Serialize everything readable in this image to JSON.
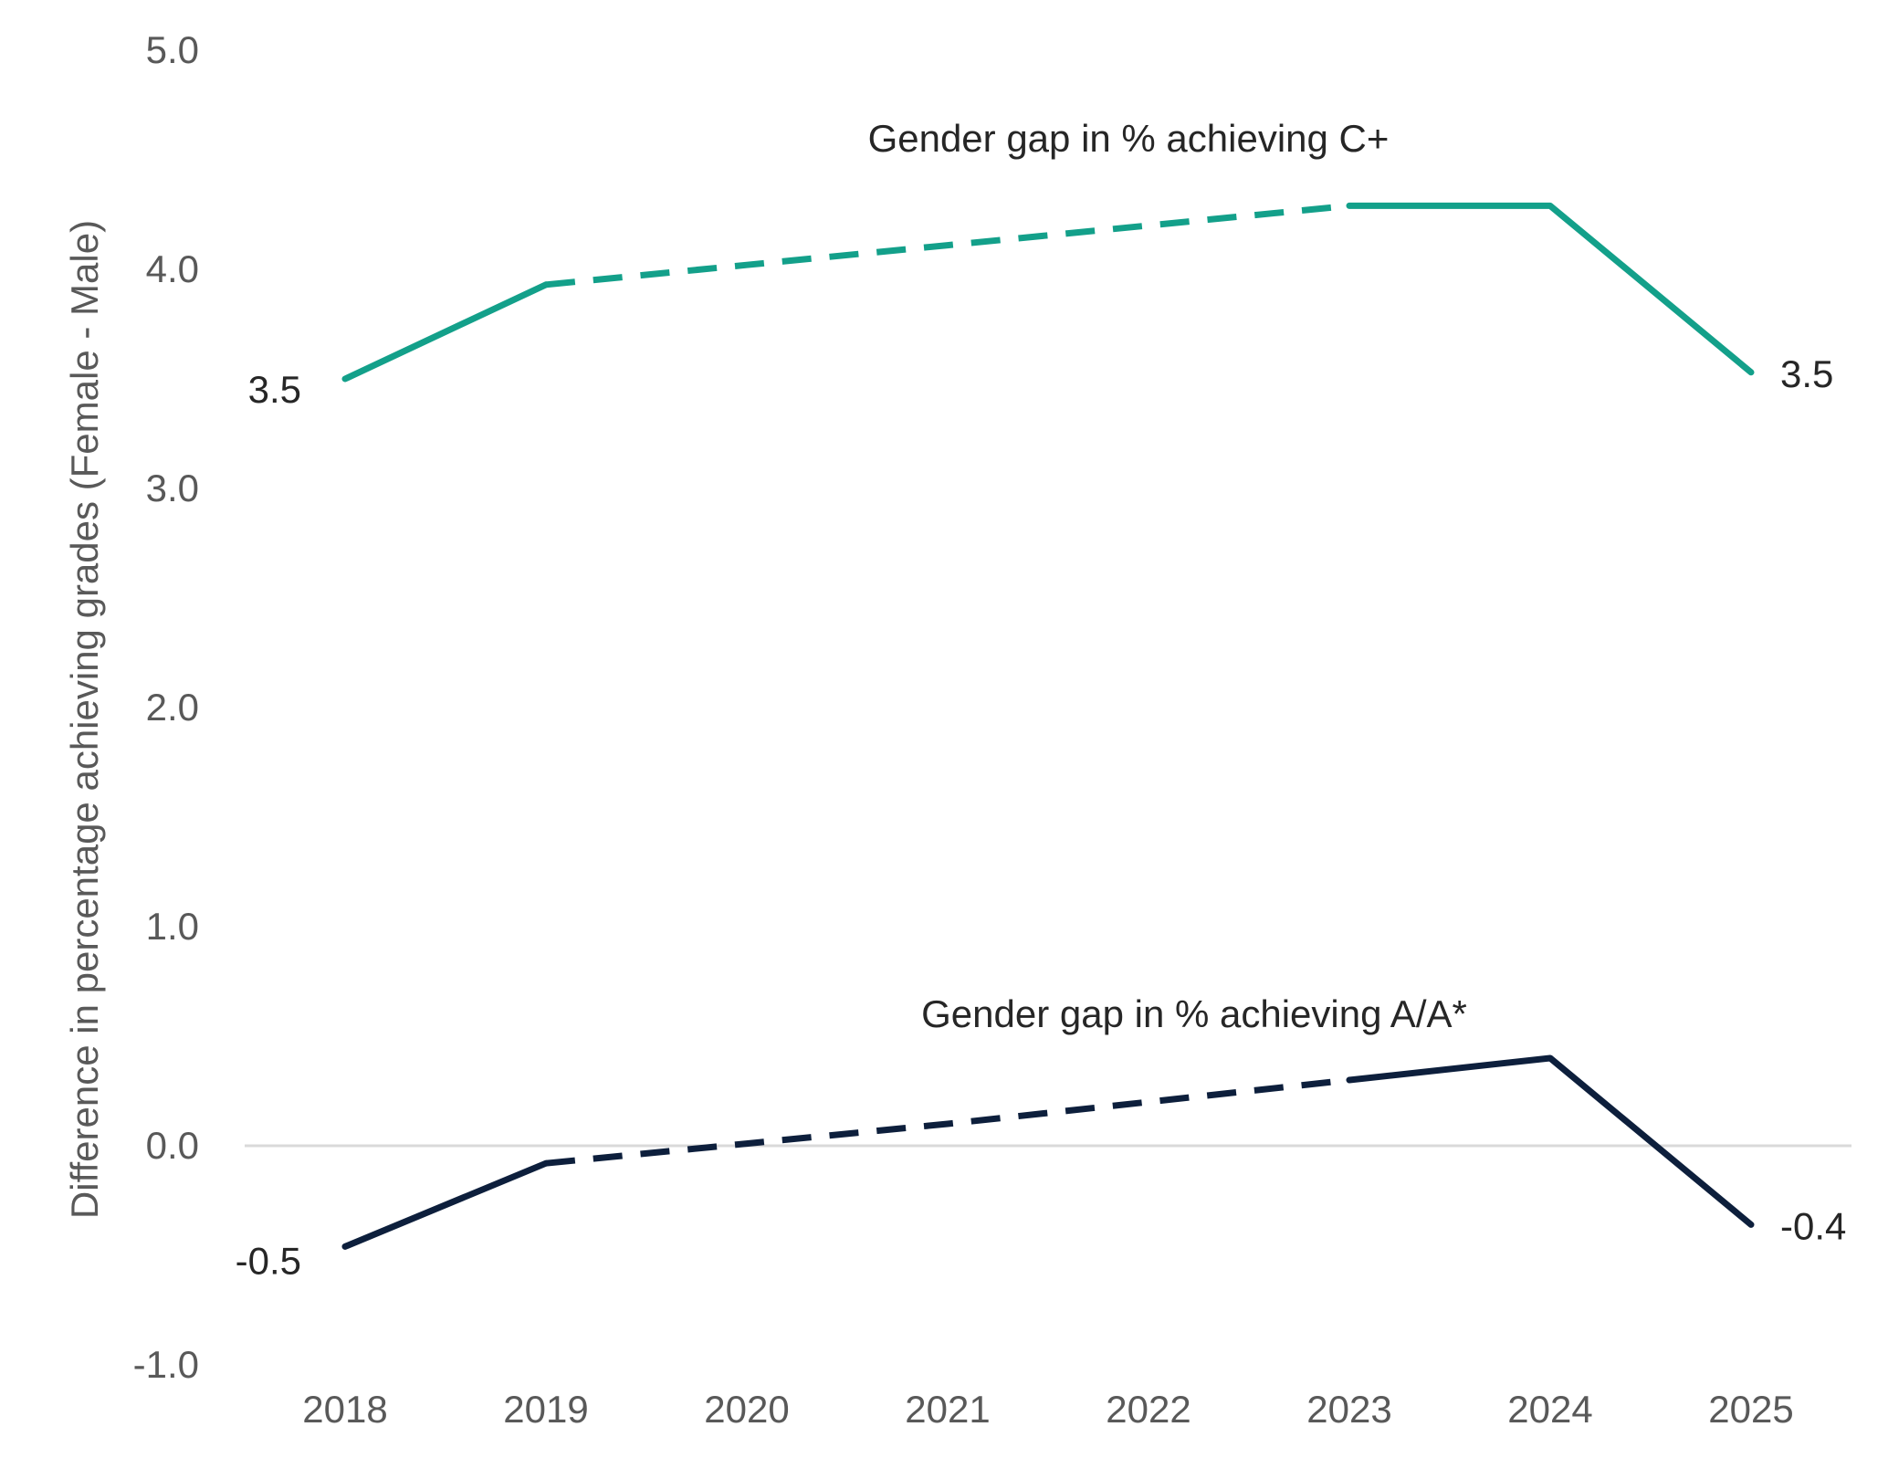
{
  "chart_data": {
    "type": "line",
    "ylabel": "Difference in percentage achieving grades (Female - Male)",
    "xlabel": "",
    "ylim": [
      -1.0,
      5.0
    ],
    "ytick_values": [
      -1.0,
      0.0,
      1.0,
      2.0,
      3.0,
      4.0,
      5.0
    ],
    "ytick_labels": [
      "-1.0",
      "0.0",
      "1.0",
      "2.0",
      "3.0",
      "4.0",
      "5.0"
    ],
    "categories": [
      "2018",
      "2019",
      "2020",
      "2021",
      "2022",
      "2023",
      "2024",
      "2025"
    ],
    "grid": false,
    "zero_line": true,
    "series": [
      {
        "name": "Gender gap in % achieving C+",
        "color": "#13A08A",
        "values": [
          3.5,
          3.93,
          4.02,
          4.11,
          4.2,
          4.29,
          4.29,
          3.53
        ],
        "dashed_between": [
          "2019",
          "2023"
        ],
        "start_label": "3.5",
        "end_label": "3.5"
      },
      {
        "name": "Gender gap in % achieving A/A*",
        "color": "#0D1F3C",
        "values": [
          -0.46,
          -0.08,
          0.01,
          0.1,
          0.2,
          0.3,
          0.4,
          -0.36
        ],
        "dashed_between": [
          "2019",
          "2023"
        ],
        "start_label": "-0.5",
        "end_label": "-0.4"
      }
    ]
  }
}
